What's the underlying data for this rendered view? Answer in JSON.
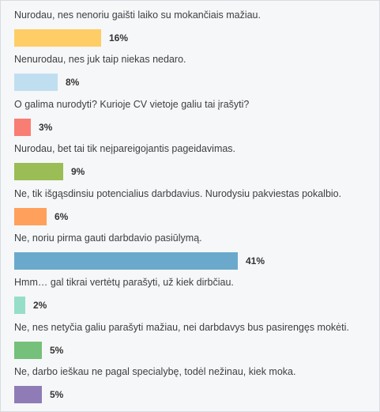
{
  "chart_data": {
    "type": "bar",
    "orientation": "horizontal",
    "categories": [
      "Nurodau, nes nenoriu gaišti laiko su mokančiais mažiau.",
      "Nenurodau, nes juk taip niekas nedaro.",
      "O galima nurodyti? Kurioje CV vietoje galiu tai įrašyti?",
      "Nurodau, bet tai tik neįpareigojantis pageidavimas.",
      "Ne, tik išgąsdinsiu potencialius darbdavius. Nurodysiu pakviestas pokalbio.",
      "Ne, noriu pirma gauti darbdavio pasiūlymą.",
      "Hmm… gal tikrai vertėtų parašyti, už kiek dirbčiau.",
      "Ne, nes netyčia galiu parašyti mažiau, nei darbdavys bus pasirengęs mokėti.",
      "Ne, darbo ieškau ne pagal specialybę, todėl nežinau, kiek moka."
    ],
    "values": [
      16,
      8,
      3,
      9,
      6,
      41,
      2,
      5,
      5
    ],
    "value_labels": [
      "16%",
      "8%",
      "3%",
      "9%",
      "6%",
      "41%",
      "2%",
      "5%",
      "5%"
    ],
    "colors": [
      "#ffcd66",
      "#bfdff1",
      "#f87d73",
      "#9bbd55",
      "#ffa05c",
      "#6aa9cc",
      "#96dec8",
      "#75c07a",
      "#8f7cb6"
    ],
    "unit": "%",
    "xlim": [
      0,
      41
    ]
  }
}
